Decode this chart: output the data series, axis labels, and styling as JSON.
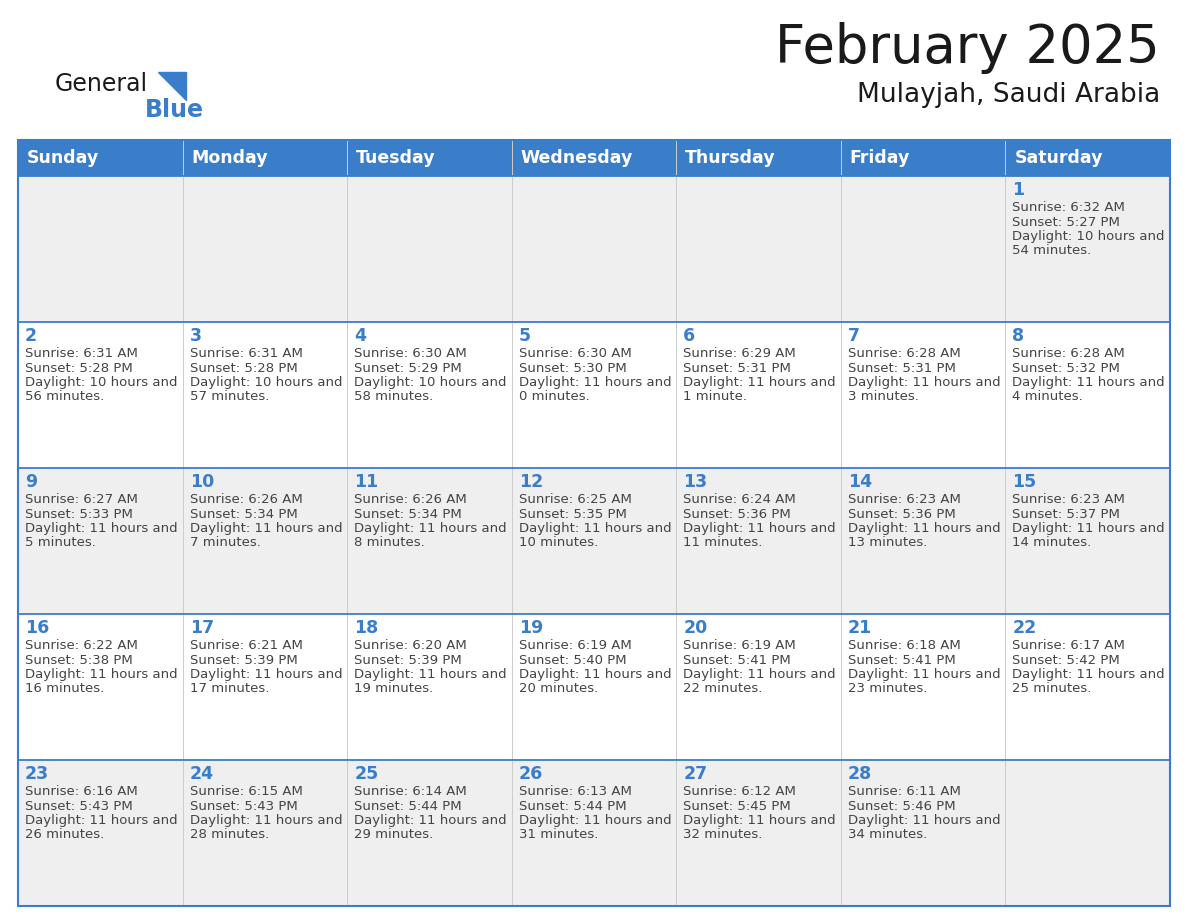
{
  "title": "February 2025",
  "subtitle": "Mulayjah, Saudi Arabia",
  "days_of_week": [
    "Sunday",
    "Monday",
    "Tuesday",
    "Wednesday",
    "Thursday",
    "Friday",
    "Saturday"
  ],
  "header_bg": "#3A7DC9",
  "header_text": "#FFFFFF",
  "row_bg_odd": "#EFEFEF",
  "row_bg_even": "#FFFFFF",
  "day_num_color": "#3A7DC9",
  "text_color": "#444444",
  "border_color": "#3A7DC9",
  "divider_color": "#CCCCCC",
  "logo_general_color": "#1a1a1a",
  "logo_blue_color": "#3A7DC9",
  "logo_triangle_color": "#3A7DC9",
  "title_color": "#1a1a1a",
  "subtitle_color": "#1a1a1a",
  "calendar_data": [
    [
      null,
      null,
      null,
      null,
      null,
      null,
      {
        "day": 1,
        "sunrise": "6:32 AM",
        "sunset": "5:27 PM",
        "daylight": "10 hours and 54 minutes."
      }
    ],
    [
      {
        "day": 2,
        "sunrise": "6:31 AM",
        "sunset": "5:28 PM",
        "daylight": "10 hours and 56 minutes."
      },
      {
        "day": 3,
        "sunrise": "6:31 AM",
        "sunset": "5:28 PM",
        "daylight": "10 hours and 57 minutes."
      },
      {
        "day": 4,
        "sunrise": "6:30 AM",
        "sunset": "5:29 PM",
        "daylight": "10 hours and 58 minutes."
      },
      {
        "day": 5,
        "sunrise": "6:30 AM",
        "sunset": "5:30 PM",
        "daylight": "11 hours and 0 minutes."
      },
      {
        "day": 6,
        "sunrise": "6:29 AM",
        "sunset": "5:31 PM",
        "daylight": "11 hours and 1 minute."
      },
      {
        "day": 7,
        "sunrise": "6:28 AM",
        "sunset": "5:31 PM",
        "daylight": "11 hours and 3 minutes."
      },
      {
        "day": 8,
        "sunrise": "6:28 AM",
        "sunset": "5:32 PM",
        "daylight": "11 hours and 4 minutes."
      }
    ],
    [
      {
        "day": 9,
        "sunrise": "6:27 AM",
        "sunset": "5:33 PM",
        "daylight": "11 hours and 5 minutes."
      },
      {
        "day": 10,
        "sunrise": "6:26 AM",
        "sunset": "5:34 PM",
        "daylight": "11 hours and 7 minutes."
      },
      {
        "day": 11,
        "sunrise": "6:26 AM",
        "sunset": "5:34 PM",
        "daylight": "11 hours and 8 minutes."
      },
      {
        "day": 12,
        "sunrise": "6:25 AM",
        "sunset": "5:35 PM",
        "daylight": "11 hours and 10 minutes."
      },
      {
        "day": 13,
        "sunrise": "6:24 AM",
        "sunset": "5:36 PM",
        "daylight": "11 hours and 11 minutes."
      },
      {
        "day": 14,
        "sunrise": "6:23 AM",
        "sunset": "5:36 PM",
        "daylight": "11 hours and 13 minutes."
      },
      {
        "day": 15,
        "sunrise": "6:23 AM",
        "sunset": "5:37 PM",
        "daylight": "11 hours and 14 minutes."
      }
    ],
    [
      {
        "day": 16,
        "sunrise": "6:22 AM",
        "sunset": "5:38 PM",
        "daylight": "11 hours and 16 minutes."
      },
      {
        "day": 17,
        "sunrise": "6:21 AM",
        "sunset": "5:39 PM",
        "daylight": "11 hours and 17 minutes."
      },
      {
        "day": 18,
        "sunrise": "6:20 AM",
        "sunset": "5:39 PM",
        "daylight": "11 hours and 19 minutes."
      },
      {
        "day": 19,
        "sunrise": "6:19 AM",
        "sunset": "5:40 PM",
        "daylight": "11 hours and 20 minutes."
      },
      {
        "day": 20,
        "sunrise": "6:19 AM",
        "sunset": "5:41 PM",
        "daylight": "11 hours and 22 minutes."
      },
      {
        "day": 21,
        "sunrise": "6:18 AM",
        "sunset": "5:41 PM",
        "daylight": "11 hours and 23 minutes."
      },
      {
        "day": 22,
        "sunrise": "6:17 AM",
        "sunset": "5:42 PM",
        "daylight": "11 hours and 25 minutes."
      }
    ],
    [
      {
        "day": 23,
        "sunrise": "6:16 AM",
        "sunset": "5:43 PM",
        "daylight": "11 hours and 26 minutes."
      },
      {
        "day": 24,
        "sunrise": "6:15 AM",
        "sunset": "5:43 PM",
        "daylight": "11 hours and 28 minutes."
      },
      {
        "day": 25,
        "sunrise": "6:14 AM",
        "sunset": "5:44 PM",
        "daylight": "11 hours and 29 minutes."
      },
      {
        "day": 26,
        "sunrise": "6:13 AM",
        "sunset": "5:44 PM",
        "daylight": "11 hours and 31 minutes."
      },
      {
        "day": 27,
        "sunrise": "6:12 AM",
        "sunset": "5:45 PM",
        "daylight": "11 hours and 32 minutes."
      },
      {
        "day": 28,
        "sunrise": "6:11 AM",
        "sunset": "5:46 PM",
        "daylight": "11 hours and 34 minutes."
      },
      null
    ]
  ]
}
